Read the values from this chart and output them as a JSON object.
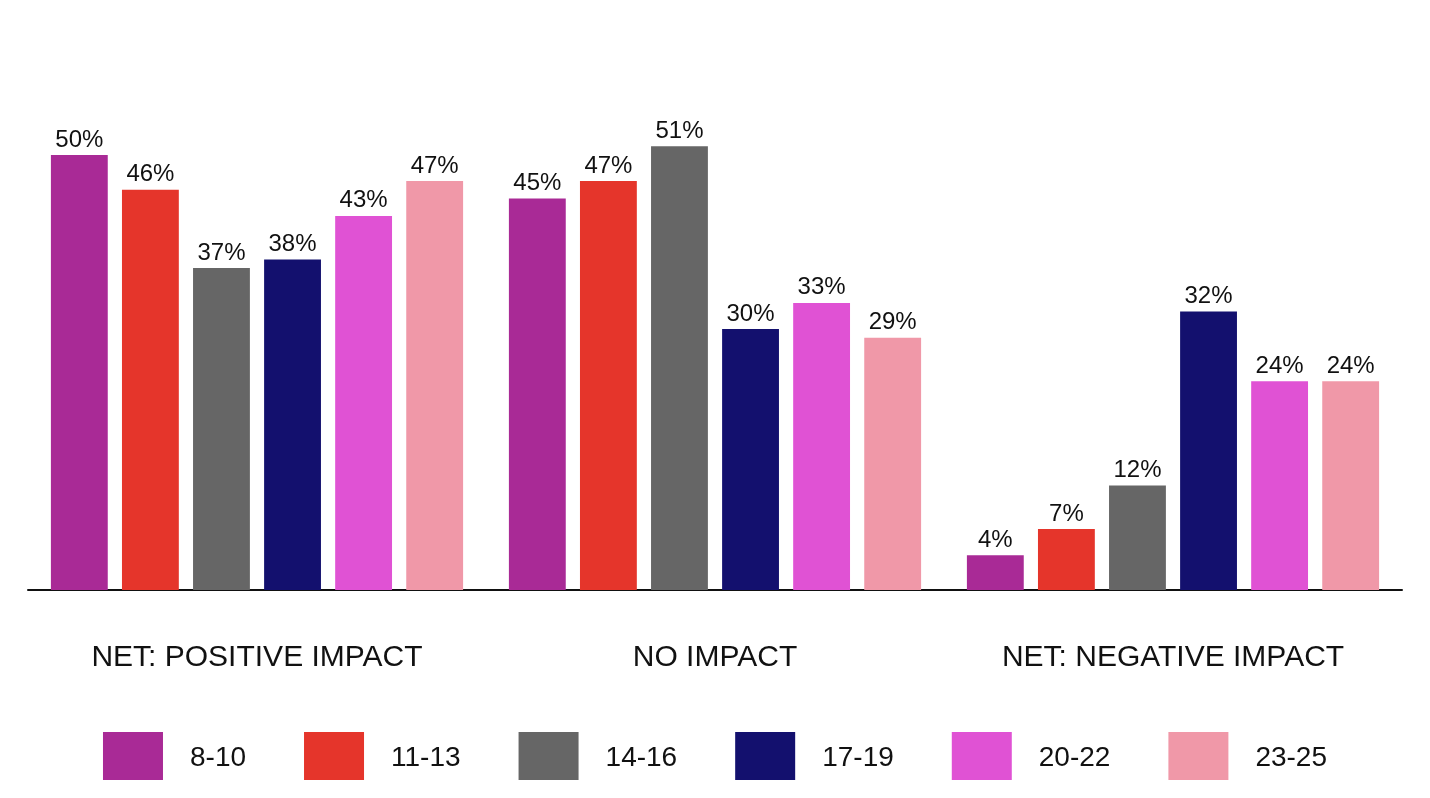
{
  "chart_data": {
    "type": "bar",
    "categories": [
      "NET: POSITIVE IMPACT",
      "NO IMPACT",
      "NET: NEGATIVE IMPACT"
    ],
    "series": [
      {
        "name": "8-10",
        "color": "#a92a96",
        "values": [
          50,
          45,
          4
        ],
        "value_labels": [
          "50%",
          "45%",
          "4%"
        ]
      },
      {
        "name": "11-13",
        "color": "#e5352b",
        "values": [
          46,
          47,
          7
        ],
        "value_labels": [
          "46%",
          "47%",
          "7%"
        ]
      },
      {
        "name": "14-16",
        "color": "#666666",
        "values": [
          37,
          51,
          12
        ],
        "value_labels": [
          "37%",
          "51%",
          "12%"
        ]
      },
      {
        "name": "17-19",
        "color": "#13106e",
        "values": [
          38,
          30,
          32
        ],
        "value_labels": [
          "38%",
          "30%",
          "32%"
        ]
      },
      {
        "name": "20-22",
        "color": "#e052d4",
        "values": [
          43,
          33,
          24
        ],
        "value_labels": [
          "43%",
          "33%",
          "24%"
        ]
      },
      {
        "name": "23-25",
        "color": "#f098a8",
        "values": [
          47,
          29,
          24
        ],
        "value_labels": [
          "47%",
          "29%",
          "24%"
        ]
      }
    ],
    "legend": "bottom",
    "grid": false
  }
}
